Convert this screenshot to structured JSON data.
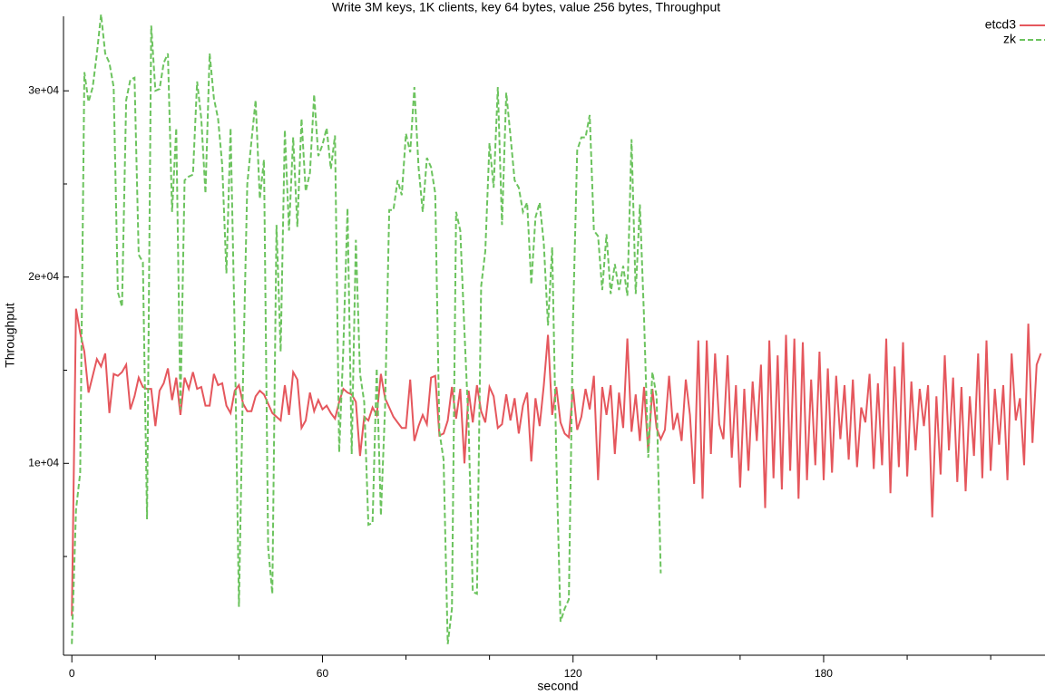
{
  "chart_data": {
    "type": "line",
    "title": "Write 3M keys, 1K clients, key 64 bytes, value 256 bytes, Throughput",
    "x_label": "second",
    "y_label": "Throughput",
    "xlim": [
      -2,
      233
    ],
    "ylim": [
      -300,
      34000
    ],
    "xticks": [
      0,
      60,
      120,
      180
    ],
    "xminorticks": [
      20,
      40,
      80,
      100,
      140,
      160,
      200,
      220
    ],
    "yticks": [
      {
        "value": 10000,
        "label": "1e+04"
      },
      {
        "value": 20000,
        "label": "2e+04"
      },
      {
        "value": 30000,
        "label": "3e+04"
      }
    ],
    "yminorticks": [
      5000,
      15000,
      25000
    ],
    "legend": "top-right",
    "x": [
      0,
      1,
      2,
      3,
      4,
      5,
      6,
      7,
      8,
      9,
      10,
      11,
      12,
      13,
      14,
      15,
      16,
      17,
      18,
      19,
      20,
      21,
      22,
      23,
      24,
      25,
      26,
      27,
      28,
      29,
      30,
      31,
      32,
      33,
      34,
      35,
      36,
      37,
      38,
      39,
      40,
      41,
      42,
      43,
      44,
      45,
      46,
      47,
      48,
      49,
      50,
      51,
      52,
      53,
      54,
      55,
      56,
      57,
      58,
      59,
      60,
      61,
      62,
      63,
      64,
      65,
      66,
      67,
      68,
      69,
      70,
      71,
      72,
      73,
      74,
      75,
      76,
      77,
      78,
      79,
      80,
      81,
      82,
      83,
      84,
      85,
      86,
      87,
      88,
      89,
      90,
      91,
      92,
      93,
      94,
      95,
      96,
      97,
      98,
      99,
      100,
      101,
      102,
      103,
      104,
      105,
      106,
      107,
      108,
      109,
      110,
      111,
      112,
      113,
      114,
      115,
      116,
      117,
      118,
      119,
      120,
      121,
      122,
      123,
      124,
      125,
      126,
      127,
      128,
      129,
      130,
      131,
      132,
      133,
      134,
      135,
      136,
      137,
      138,
      139,
      140,
      141,
      142,
      143,
      144,
      145,
      146,
      147,
      148,
      149,
      150,
      151,
      152,
      153,
      154,
      155,
      156,
      157,
      158,
      159,
      160,
      161,
      162,
      163,
      164,
      165,
      166,
      167,
      168,
      169,
      170,
      171,
      172,
      173,
      174,
      175,
      176,
      177,
      178,
      179,
      180,
      181,
      182,
      183,
      184,
      185,
      186,
      187,
      188,
      189,
      190,
      191,
      192,
      193,
      194,
      195,
      196,
      197,
      198,
      199,
      200,
      201,
      202,
      203,
      204,
      205,
      206,
      207,
      208,
      209,
      210,
      211,
      212,
      213,
      214,
      215,
      216,
      217,
      218,
      219,
      220,
      221,
      222,
      223,
      224,
      225,
      226,
      227,
      228,
      229,
      230,
      231,
      232
    ],
    "series": [
      {
        "name": "etcd3",
        "color": "#e5575d",
        "dash": false,
        "values": [
          1800,
          18300,
          17000,
          16000,
          13800,
          14700,
          15600,
          15200,
          15900,
          12700,
          14800,
          14700,
          14900,
          15300,
          12900,
          13600,
          14600,
          14100,
          14000,
          14000,
          12000,
          13900,
          14300,
          15100,
          13400,
          14600,
          12600,
          14600,
          14000,
          14900,
          14000,
          14100,
          13100,
          13100,
          14800,
          14200,
          14300,
          13100,
          12700,
          13900,
          14200,
          13200,
          12800,
          12800,
          13600,
          13900,
          13700,
          13200,
          12700,
          12500,
          12300,
          14200,
          12600,
          14900,
          14500,
          11900,
          12300,
          13800,
          12800,
          13400,
          12900,
          13100,
          12700,
          12400,
          13300,
          14000,
          13800,
          13700,
          13300,
          10400,
          12500,
          12300,
          13000,
          12600,
          14800,
          13500,
          13000,
          12500,
          12200,
          11900,
          11900,
          14500,
          11200,
          12000,
          12600,
          12100,
          14600,
          14700,
          11500,
          11600,
          12300,
          14100,
          12400,
          14000,
          10000,
          13900,
          12200,
          14200,
          12800,
          12200,
          14100,
          13600,
          11900,
          12100,
          13700,
          12300,
          13500,
          11600,
          13100,
          13800,
          10100,
          13500,
          12000,
          14200,
          16900,
          12600,
          14100,
          12200,
          11600,
          11400,
          14000,
          11800,
          12500,
          14000,
          12900,
          14700,
          9100,
          14100,
          12600,
          14200,
          10500,
          13800,
          11900,
          16700,
          11700,
          13700,
          11200,
          14100,
          10600,
          14000,
          11900,
          11300,
          11800,
          14700,
          11800,
          12700,
          11200,
          14500,
          12600,
          8900,
          16600,
          8100,
          16600,
          10500,
          15900,
          12100,
          11300,
          15800,
          10300,
          14200,
          8700,
          14000,
          9600,
          14400,
          11200,
          15300,
          7600,
          16600,
          9200,
          15800,
          8600,
          16900,
          9600,
          16700,
          8100,
          16500,
          9100,
          14500,
          9900,
          16000,
          9100,
          15100,
          9500,
          14700,
          11300,
          14200,
          10200,
          14500,
          9800,
          13000,
          12200,
          14800,
          9700,
          14300,
          9900,
          16700,
          8400,
          15200,
          9800,
          16500,
          9300,
          14400,
          10700,
          14000,
          12000,
          14200,
          7100,
          13600,
          9400,
          15800,
          10700,
          14600,
          9000,
          14100,
          8500,
          13600,
          10400,
          15900,
          9200,
          16600,
          9600,
          14000,
          11000,
          14200,
          9100,
          15900,
          12300,
          13500,
          9900,
          17500,
          11100,
          15300,
          15900
        ]
      },
      {
        "name": "zk",
        "color": "#6cc35e",
        "dash": true,
        "values": [
          300,
          7500,
          9500,
          31000,
          29400,
          30200,
          32000,
          34100,
          32000,
          31500,
          30200,
          19200,
          18400,
          29500,
          30600,
          30700,
          21200,
          20800,
          7000,
          33500,
          30000,
          30100,
          31500,
          32000,
          23500,
          28000,
          12900,
          25200,
          25400,
          25500,
          30500,
          28500,
          24500,
          32000,
          29600,
          28500,
          26000,
          20200,
          28000,
          16900,
          2300,
          14800,
          25000,
          27300,
          29500,
          24200,
          26300,
          5500,
          3000,
          22800,
          16000,
          27900,
          22500,
          27500,
          22700,
          28500,
          24600,
          25600,
          29800,
          26500,
          27100,
          28000,
          25800,
          27600,
          10600,
          16200,
          23700,
          10500,
          22000,
          14800,
          13300,
          6700,
          6800,
          15100,
          7200,
          13000,
          23600,
          23600,
          25200,
          24400,
          27700,
          26700,
          30200,
          25900,
          23500,
          26400,
          25900,
          24500,
          11700,
          10200,
          300,
          2200,
          23500,
          22500,
          17100,
          12000,
          3100,
          3000,
          19500,
          21400,
          27200,
          24800,
          30200,
          22800,
          29900,
          27600,
          25200,
          24800,
          23500,
          24000,
          19600,
          23200,
          24000,
          21800,
          17400,
          21600,
          10300,
          1500,
          2200,
          2700,
          17700,
          26800,
          27500,
          27500,
          28700,
          22500,
          22200,
          19300,
          22300,
          19100,
          20700,
          19300,
          20600,
          19000,
          27400,
          19100,
          23900,
          17800,
          10300,
          14900,
          13600,
          4100,
          null,
          null,
          null,
          null,
          null,
          null,
          null,
          null,
          null,
          null,
          null,
          null,
          null,
          null,
          null,
          null,
          null,
          null,
          null,
          null,
          null,
          null,
          null,
          null,
          null,
          null,
          null,
          null,
          null,
          null,
          null,
          null,
          null,
          null,
          null,
          null,
          null,
          null,
          null,
          null,
          null,
          null,
          null,
          null,
          null,
          null,
          null,
          null,
          null,
          null,
          null,
          null,
          null,
          null,
          null,
          null,
          null,
          null,
          null,
          null,
          null,
          null,
          null,
          null,
          null,
          null,
          null,
          null,
          null,
          null,
          null,
          null,
          null,
          null,
          null,
          null,
          null,
          null,
          null,
          null,
          null,
          null,
          null,
          null,
          null,
          null,
          null,
          null,
          null,
          null,
          null
        ]
      }
    ]
  }
}
